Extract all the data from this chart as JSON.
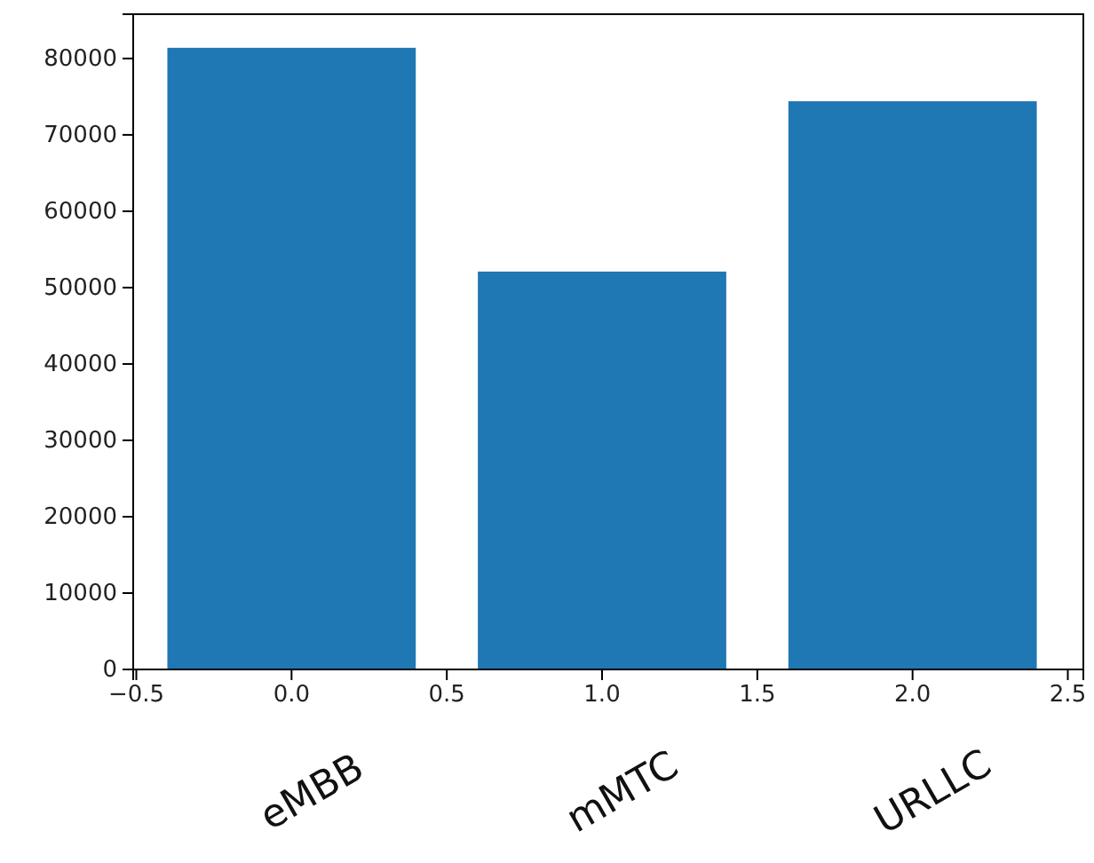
{
  "chart_data": {
    "type": "bar",
    "x": [
      0,
      1,
      2
    ],
    "values": [
      81400,
      52100,
      74400
    ],
    "color": "#1f77b4",
    "xlim": [
      -0.51,
      2.55
    ],
    "xticks": [
      -0.5,
      {
        "value": 0,
        "label": "0.0"
      },
      0.5,
      {
        "value": 1,
        "label": "1.0"
      },
      1.5,
      {
        "value": 2,
        "label": "2.0"
      },
      2.5
    ],
    "ylim": [
      0,
      85800
    ],
    "yticks": [
      0,
      10000,
      20000,
      30000,
      40000,
      50000,
      60000,
      70000,
      80000
    ],
    "annotations": [
      "eMBB",
      "mMTC",
      "URLLC"
    ]
  }
}
